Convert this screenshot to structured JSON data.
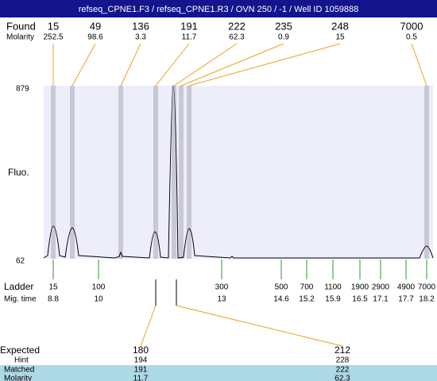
{
  "header": {
    "title": "refseq_CPNE1.F3 / refseq_CPNE1.R3 / OVN 250 / -1 / Well ID 1059888"
  },
  "found": {
    "label": "Found",
    "molarity_label": "Molarity",
    "peaks": [
      {
        "size": 15,
        "molarity": 252.5
      },
      {
        "size": 49,
        "molarity": 98.6
      },
      {
        "size": 136,
        "molarity": 3.3
      },
      {
        "size": 191,
        "molarity": 11.7
      },
      {
        "size": 222,
        "molarity": 62.3
      },
      {
        "size": 235,
        "molarity": 0.9
      },
      {
        "size": 248,
        "molarity": 15
      },
      {
        "size": 7000,
        "molarity": 0.5
      }
    ]
  },
  "plot": {
    "y_label": "Fluo.",
    "y_max": 879,
    "y_min": 62
  },
  "ladder": {
    "label": "Ladder",
    "time_label": "Mig. time",
    "steps": [
      {
        "size": 15,
        "time": 8.8
      },
      {
        "size": 100,
        "time": 10
      },
      {
        "size": 300,
        "time": 13
      },
      {
        "size": 500,
        "time": 14.6
      },
      {
        "size": 700,
        "time": 15.2
      },
      {
        "size": 1100,
        "time": 15.9
      },
      {
        "size": 1900,
        "time": 16.5
      },
      {
        "size": 2900,
        "time": 17.1
      },
      {
        "size": 4900,
        "time": 17.7
      },
      {
        "size": 7000,
        "time": 18.2
      }
    ]
  },
  "expected": {
    "label": "Expected",
    "hint_label": "Hint",
    "matched_label": "Matched",
    "molarity_label": "Molarity",
    "columns": [
      {
        "expected": 180,
        "hint": 194,
        "matched": 191,
        "molarity": 11.7
      },
      {
        "expected": 212,
        "hint": 228,
        "matched": 222,
        "molarity": 62.3
      }
    ]
  }
}
